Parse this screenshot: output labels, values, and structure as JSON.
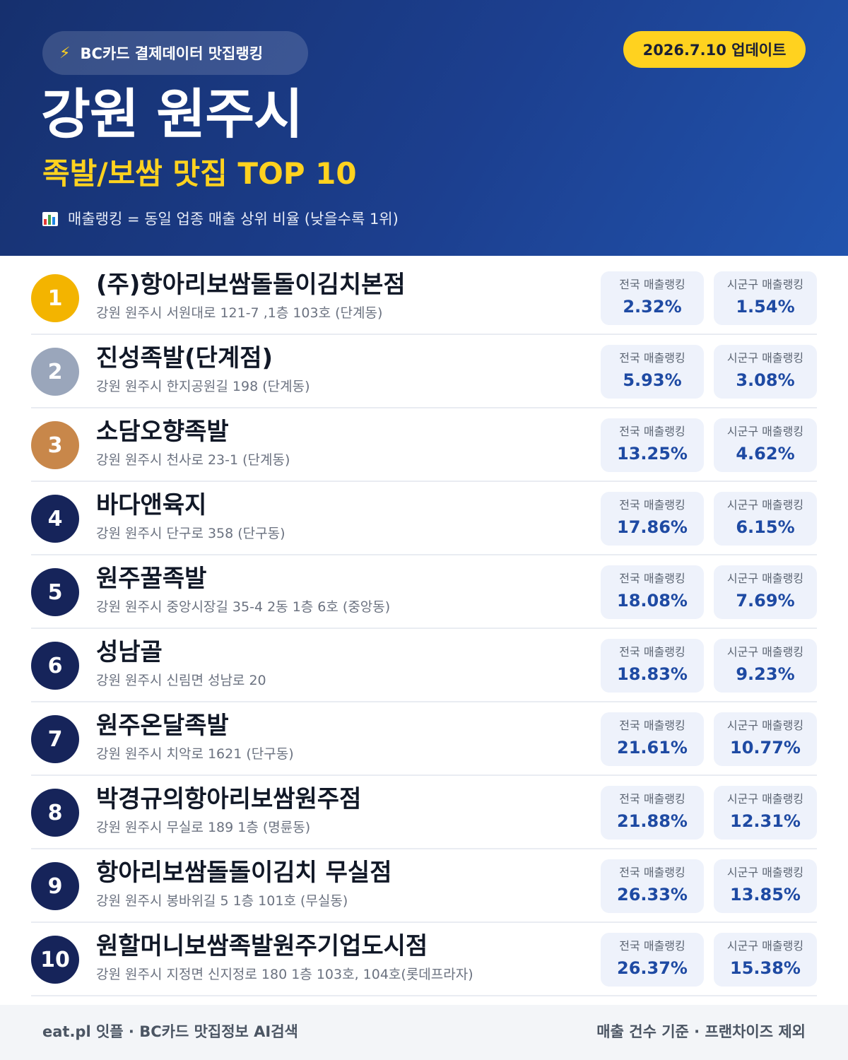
{
  "header": {
    "source_label": "BC카드 결제데이터 맛집랭킹",
    "source_icon": "lightning-icon",
    "update_label": "2026.7.10 업데이트",
    "title": "강원 원주시",
    "subtitle": "족발/보쌈 맛집 TOP 10",
    "legend_icon": "bar-chart-icon",
    "legend_text": "매출랭킹 = 동일 업종 매출 상위 비율 (낮을수록 1위)"
  },
  "labels": {
    "national": "전국 매출랭킹",
    "district": "시군구 매출랭킹"
  },
  "colors": {
    "gold": "#f3b400",
    "silver": "#9aa6bb",
    "bronze": "#c8874a",
    "navy": "#16245a",
    "accent": "#ffd21f",
    "value_blue": "#1e4aa3"
  },
  "restaurants": [
    {
      "rank": "1",
      "name": "(주)항아리보쌈돌돌이김치본점",
      "address": "강원 원주시 서원대로 121-7 ,1층 103호 (단계동)",
      "national": "2.32%",
      "district": "1.54%"
    },
    {
      "rank": "2",
      "name": "진성족발(단계점)",
      "address": "강원 원주시 한지공원길 198 (단계동)",
      "national": "5.93%",
      "district": "3.08%"
    },
    {
      "rank": "3",
      "name": "소담오향족발",
      "address": "강원 원주시 천사로 23-1 (단계동)",
      "national": "13.25%",
      "district": "4.62%"
    },
    {
      "rank": "4",
      "name": "바다앤육지",
      "address": "강원 원주시 단구로 358 (단구동)",
      "national": "17.86%",
      "district": "6.15%"
    },
    {
      "rank": "5",
      "name": "원주꿀족발",
      "address": "강원 원주시 중앙시장길 35-4 2동 1층 6호 (중앙동)",
      "national": "18.08%",
      "district": "7.69%"
    },
    {
      "rank": "6",
      "name": "성남골",
      "address": "강원 원주시 신림면 성남로 20",
      "national": "18.83%",
      "district": "9.23%"
    },
    {
      "rank": "7",
      "name": "원주온달족발",
      "address": "강원 원주시 치악로 1621 (단구동)",
      "national": "21.61%",
      "district": "10.77%"
    },
    {
      "rank": "8",
      "name": "박경규의항아리보쌈원주점",
      "address": "강원 원주시 무실로 189 1층 (명륜동)",
      "national": "21.88%",
      "district": "12.31%"
    },
    {
      "rank": "9",
      "name": "항아리보쌈돌돌이김치 무실점",
      "address": "강원 원주시 봉바위길 5 1층 101호 (무실동)",
      "national": "26.33%",
      "district": "13.85%"
    },
    {
      "rank": "10",
      "name": "원할머니보쌈족발원주기업도시점",
      "address": "강원 원주시 지정면 신지정로 180 1층 103호, 104호(롯데프라자)",
      "national": "26.37%",
      "district": "15.38%"
    }
  ],
  "footer": {
    "left": "eat.pl 잇플 · BC카드 맛집정보 AI검색",
    "right": "매출 건수 기준 · 프랜차이즈 제외"
  }
}
